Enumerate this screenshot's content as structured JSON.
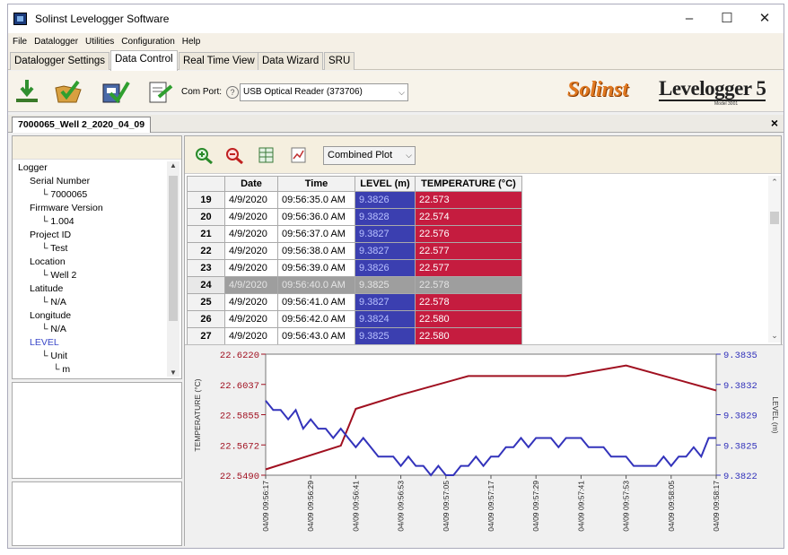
{
  "window": {
    "title": "Solinst Levelogger Software",
    "controls": {
      "minimize": "–",
      "maximize": "☐",
      "close": "✕"
    }
  },
  "menu": [
    "File",
    "Datalogger",
    "Utilities",
    "Configuration",
    "Help"
  ],
  "tabs": [
    "Datalogger Settings",
    "Data Control",
    "Real Time View",
    "Data Wizard",
    "SRU"
  ],
  "active_tab": "Data Control",
  "toolbar": {
    "com_port_label": "Com Port:",
    "help_glyph": "?",
    "com_port_value": "USB Optical Reader (373706)",
    "brand_solinst": "Solinst",
    "brand_product": "Levelogger 5",
    "brand_model": "Model 3001"
  },
  "document": {
    "tab_label": "7000065_Well 2_2020_04_09",
    "close_glyph": "×"
  },
  "tree": [
    {
      "label": "Logger",
      "indent": 0
    },
    {
      "label": "Serial Number",
      "indent": 1
    },
    {
      "label": "7000065",
      "indent": 2
    },
    {
      "label": "Firmware Version",
      "indent": 1
    },
    {
      "label": "1.004",
      "indent": 2
    },
    {
      "label": "Project ID",
      "indent": 1
    },
    {
      "label": "Test",
      "indent": 2
    },
    {
      "label": "Location",
      "indent": 1
    },
    {
      "label": "Well 2",
      "indent": 2
    },
    {
      "label": "Latitude",
      "indent": 1
    },
    {
      "label": "N/A",
      "indent": 2
    },
    {
      "label": "Longitude",
      "indent": 1
    },
    {
      "label": "N/A",
      "indent": 2
    },
    {
      "label": "LEVEL",
      "indent": 1,
      "highlight": true
    },
    {
      "label": "Unit",
      "indent": 2
    },
    {
      "label": "m",
      "indent": 3
    }
  ],
  "plot_mode": "Combined Plot",
  "table": {
    "columns": [
      "",
      "Date",
      "Time",
      "LEVEL (m)",
      "TEMPERATURE (°C)"
    ],
    "rows": [
      {
        "n": "19",
        "date": "4/9/2020",
        "time": "09:56:35.0 AM",
        "level": "9.3826",
        "temp": "22.573"
      },
      {
        "n": "20",
        "date": "4/9/2020",
        "time": "09:56:36.0 AM",
        "level": "9.3828",
        "temp": "22.574"
      },
      {
        "n": "21",
        "date": "4/9/2020",
        "time": "09:56:37.0 AM",
        "level": "9.3827",
        "temp": "22.576"
      },
      {
        "n": "22",
        "date": "4/9/2020",
        "time": "09:56:38.0 AM",
        "level": "9.3827",
        "temp": "22.577"
      },
      {
        "n": "23",
        "date": "4/9/2020",
        "time": "09:56:39.0 AM",
        "level": "9.3826",
        "temp": "22.577"
      },
      {
        "n": "24",
        "date": "4/9/2020",
        "time": "09:56:40.0 AM",
        "level": "9.3825",
        "temp": "22.578",
        "selected": true
      },
      {
        "n": "25",
        "date": "4/9/2020",
        "time": "09:56:41.0 AM",
        "level": "9.3827",
        "temp": "22.578"
      },
      {
        "n": "26",
        "date": "4/9/2020",
        "time": "09:56:42.0 AM",
        "level": "9.3824",
        "temp": "22.580"
      },
      {
        "n": "27",
        "date": "4/9/2020",
        "time": "09:56:43.0 AM",
        "level": "9.3825",
        "temp": "22.580"
      }
    ]
  },
  "colors": {
    "level_fill": "#3b3fb0",
    "temp_fill": "#c51c3f",
    "level_line": "#3333bb",
    "temp_line": "#a01020"
  },
  "chart_data": {
    "type": "line",
    "ylabel_left": "TEMPERATURE (°C)",
    "ylabel_right": "LEVEL (m)",
    "yticks_left": [
      "22.6220",
      "22.6037",
      "22.5855",
      "22.5672",
      "22.5490"
    ],
    "yticks_right": [
      "9.3835",
      "9.3832",
      "9.3829",
      "9.3825",
      "9.3822"
    ],
    "ylim_left": [
      22.549,
      22.622
    ],
    "ylim_right": [
      9.3822,
      9.3835
    ],
    "x_ticks": [
      "04/09 09:56:17",
      "04/09 09:56:29",
      "04/09 09:56:41",
      "04/09 09:56:53",
      "04/09 09:57:05",
      "04/09 09:57:17",
      "04/09 09:57:29",
      "04/09 09:57:41",
      "04/09 09:57:53",
      "04/09 09:58:05",
      "04/09 09:58:17"
    ],
    "x_seconds_range": [
      0,
      120
    ],
    "series": [
      {
        "name": "TEMPERATURE (°C)",
        "axis": "left",
        "points": [
          [
            0,
            22.5525
          ],
          [
            20,
            22.5668
          ],
          [
            24,
            22.589
          ],
          [
            36,
            22.5975
          ],
          [
            54,
            22.6088
          ],
          [
            80,
            22.6088
          ],
          [
            96,
            22.6152
          ],
          [
            120,
            22.6001
          ]
        ]
      },
      {
        "name": "LEVEL (m)",
        "axis": "right",
        "points": [
          [
            0,
            9.383
          ],
          [
            2,
            9.3829
          ],
          [
            4,
            9.3829
          ],
          [
            6,
            9.3828
          ],
          [
            8,
            9.3829
          ],
          [
            10,
            9.3827
          ],
          [
            12,
            9.3828
          ],
          [
            14,
            9.3827
          ],
          [
            16,
            9.3827
          ],
          [
            18,
            9.3826
          ],
          [
            20,
            9.3827
          ],
          [
            22,
            9.3826
          ],
          [
            24,
            9.3825
          ],
          [
            26,
            9.3826
          ],
          [
            28,
            9.3825
          ],
          [
            30,
            9.3824
          ],
          [
            32,
            9.3824
          ],
          [
            34,
            9.3824
          ],
          [
            36,
            9.3823
          ],
          [
            38,
            9.3824
          ],
          [
            40,
            9.3823
          ],
          [
            42,
            9.3823
          ],
          [
            44,
            9.3822
          ],
          [
            46,
            9.3823
          ],
          [
            48,
            9.3822
          ],
          [
            50,
            9.3822
          ],
          [
            52,
            9.3823
          ],
          [
            54,
            9.3823
          ],
          [
            56,
            9.3824
          ],
          [
            58,
            9.3823
          ],
          [
            60,
            9.3824
          ],
          [
            62,
            9.3824
          ],
          [
            64,
            9.3825
          ],
          [
            66,
            9.3825
          ],
          [
            68,
            9.3826
          ],
          [
            70,
            9.3825
          ],
          [
            72,
            9.3826
          ],
          [
            74,
            9.3826
          ],
          [
            76,
            9.3826
          ],
          [
            78,
            9.3825
          ],
          [
            80,
            9.3826
          ],
          [
            82,
            9.3826
          ],
          [
            84,
            9.3826
          ],
          [
            86,
            9.3825
          ],
          [
            88,
            9.3825
          ],
          [
            90,
            9.3825
          ],
          [
            92,
            9.3824
          ],
          [
            94,
            9.3824
          ],
          [
            96,
            9.3824
          ],
          [
            98,
            9.3823
          ],
          [
            100,
            9.3823
          ],
          [
            102,
            9.3823
          ],
          [
            104,
            9.3823
          ],
          [
            106,
            9.3824
          ],
          [
            108,
            9.3823
          ],
          [
            110,
            9.3824
          ],
          [
            112,
            9.3824
          ],
          [
            114,
            9.3825
          ],
          [
            116,
            9.3824
          ],
          [
            118,
            9.3826
          ],
          [
            120,
            9.3826
          ]
        ]
      }
    ]
  }
}
